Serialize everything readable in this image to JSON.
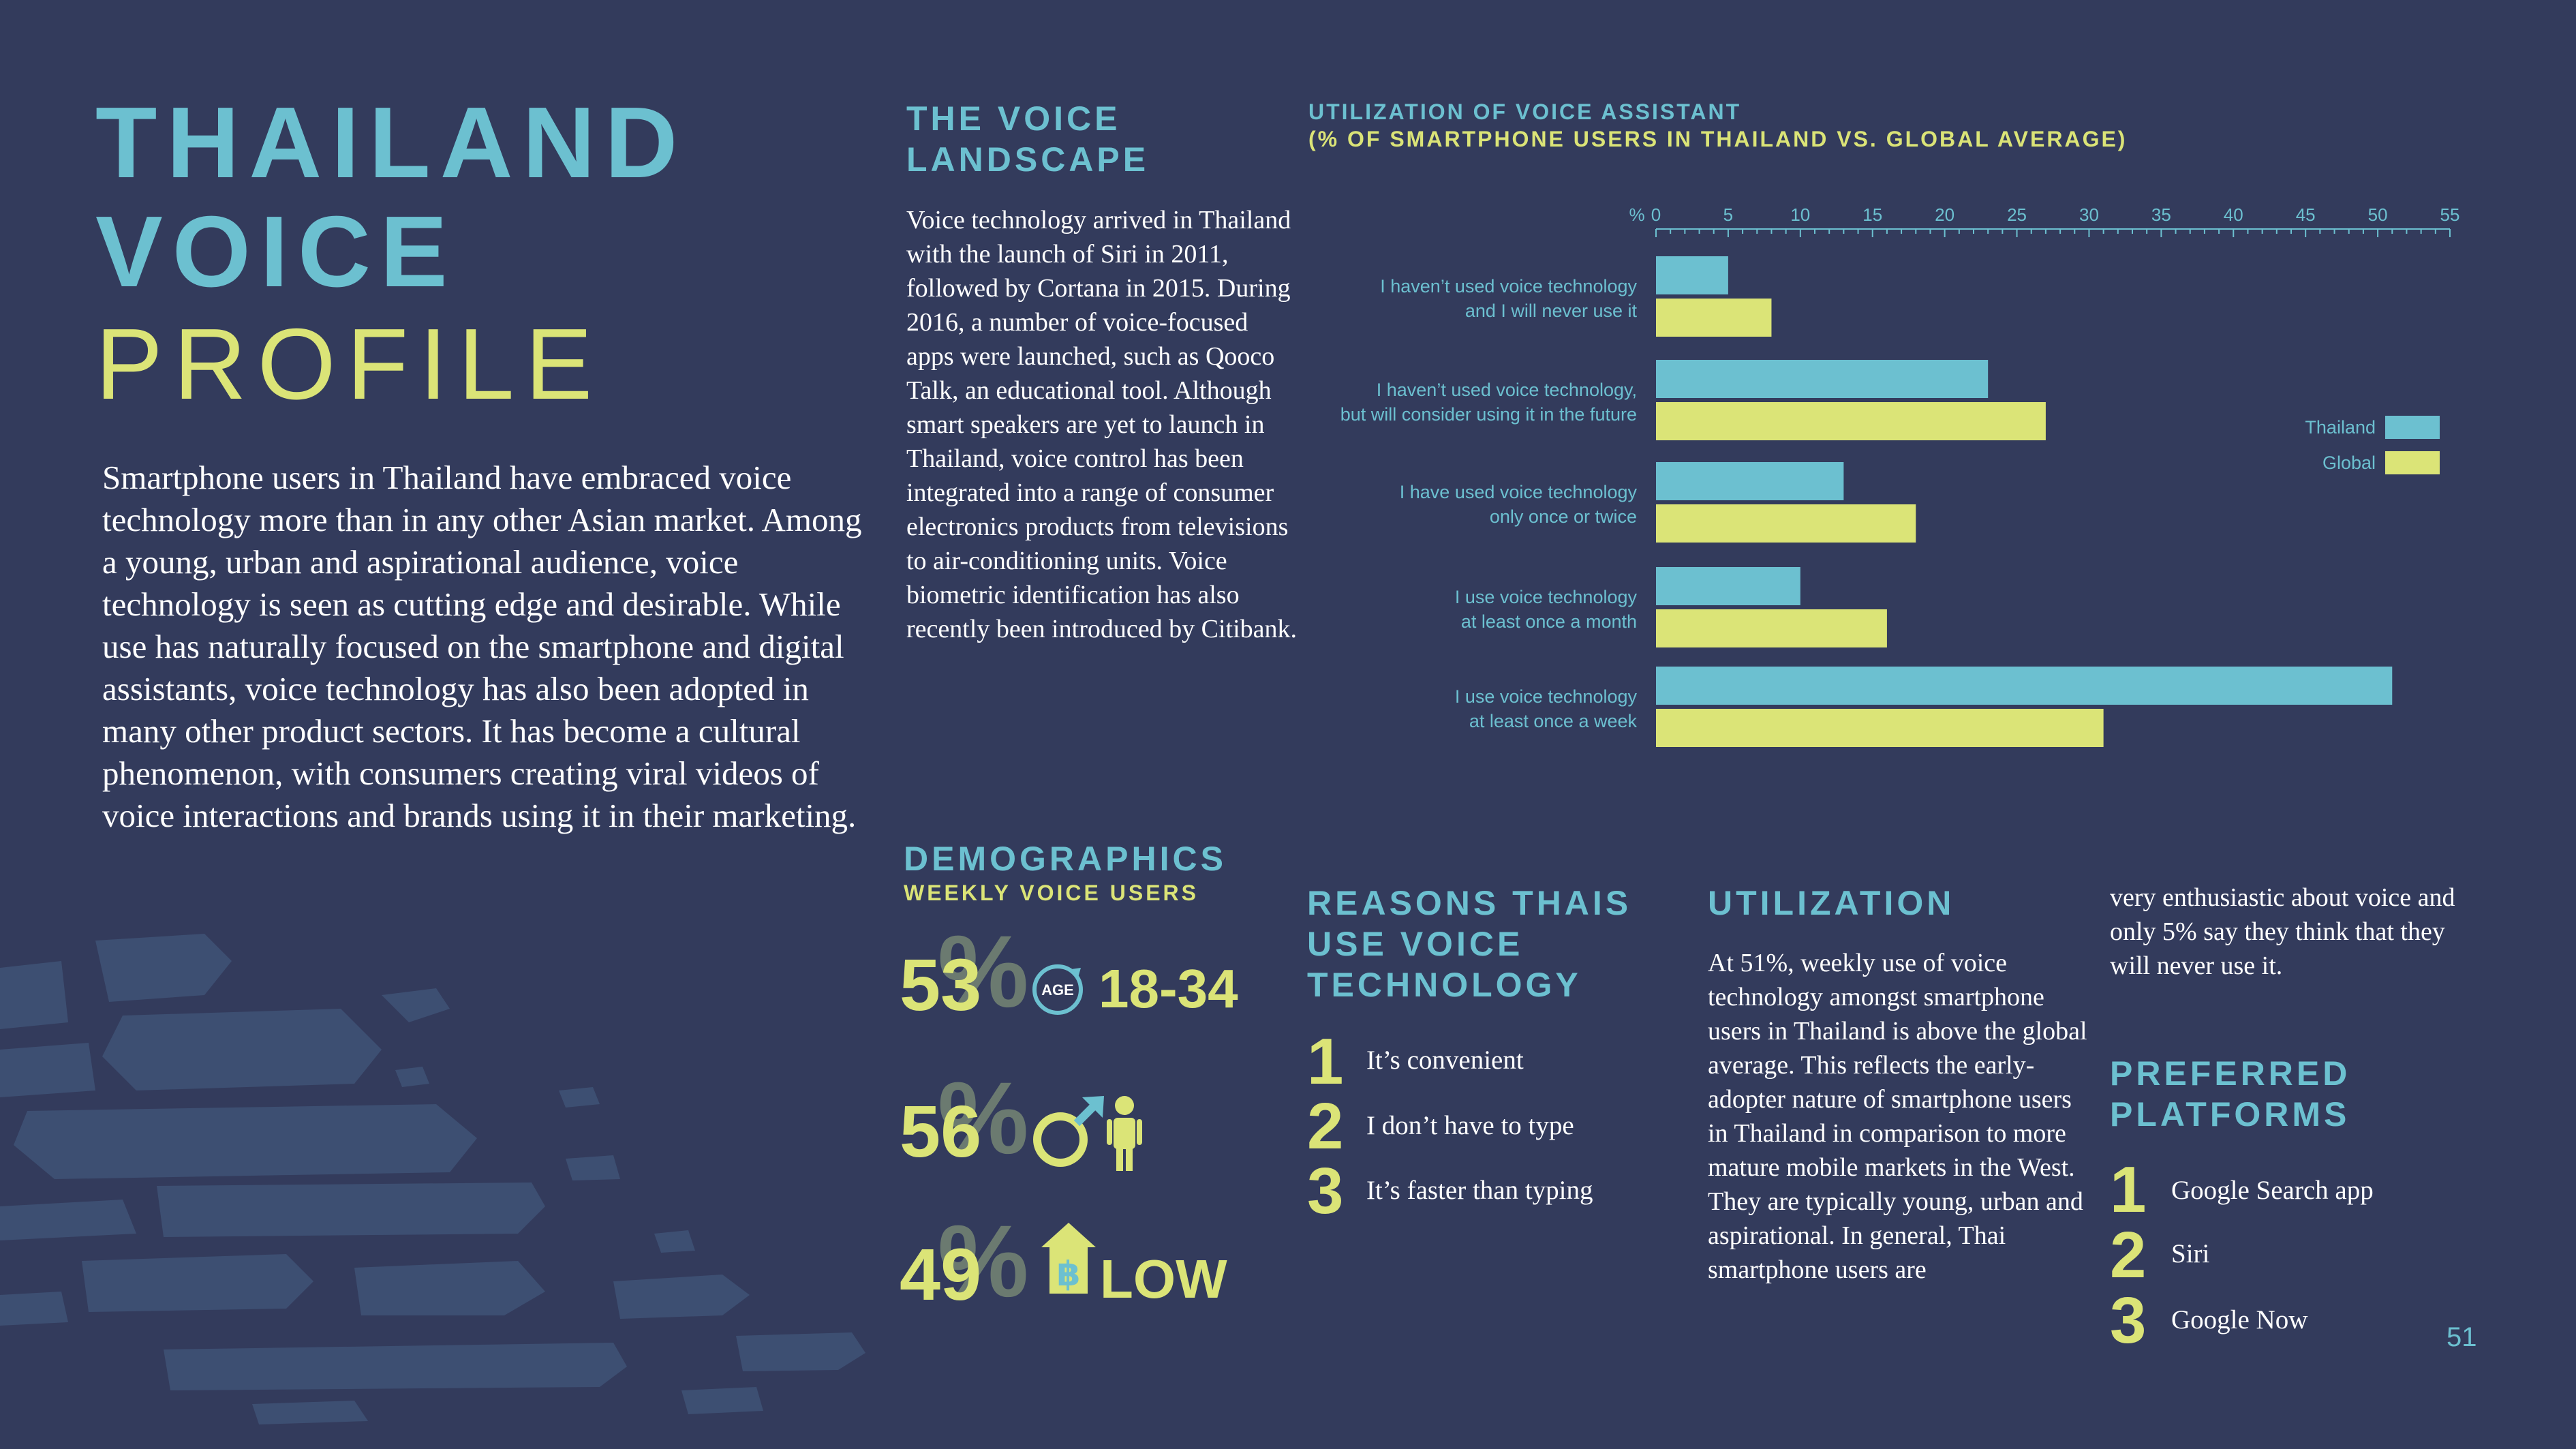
{
  "title": {
    "line1": "THAILAND",
    "line2": "VOICE",
    "line3": "PROFILE"
  },
  "intro": "Smartphone users in Thailand have embraced voice technology more than in any other Asian market. Among a young, urban and aspirational audience, voice technology is seen as cutting edge and desirable. While use has naturally focused on the smartphone and digital assistants, voice technology has also been adopted in many other product sectors. It has become a cultural phenomenon, with consumers creating viral videos of voice interactions and brands using it in their marketing.",
  "landscape": {
    "heading_1": "THE VOICE",
    "heading_2": "LANDSCAPE",
    "body": "Voice technology arrived in Thailand with the launch of Siri in 2011, followed by Cortana in 2015. During 2016, a number of voice-focused apps were launched, such as Qooco Talk, an educational tool. Although smart speakers are yet to launch in Thailand, voice control has been integrated into a range of consumer electronics products from televisions to air-conditioning units. Voice biometric identification has also recently been introduced by Citibank."
  },
  "demographics": {
    "heading": "DEMOGRAPHICS",
    "subheading": "WEEKLY VOICE USERS",
    "percent_sign": "%",
    "rows": [
      {
        "value": "53",
        "icon": "age-icon",
        "icon_text": "AGE",
        "label": "18-34"
      },
      {
        "value": "56",
        "icon": "male-icon",
        "label": ""
      },
      {
        "value": "49",
        "icon": "baht-house-icon",
        "icon_text": "฿",
        "label": "LOW"
      }
    ]
  },
  "reasons": {
    "heading_1": "REASONS THAIS",
    "heading_2": "USE VOICE",
    "heading_3": "TECHNOLOGY",
    "items": [
      {
        "num": "1",
        "text": "It’s convenient"
      },
      {
        "num": "2",
        "text": "I don’t have to type"
      },
      {
        "num": "3",
        "text": "It’s faster than typing"
      }
    ]
  },
  "utilization": {
    "heading": "UTILIZATION",
    "body": "At 51%, weekly use of voice technology amongst smartphone users in Thailand is above the global average. This reflects the early-adopter nature of smartphone users in Thailand in comparison to more mature mobile markets in the West. They are typically young, urban and aspirational. In general, Thai smartphone users are",
    "body_cont": "very enthusiastic about voice and only 5% say they think that they will never use it."
  },
  "platforms": {
    "heading_1": "PREFERRED",
    "heading_2": "PLATFORMS",
    "items": [
      {
        "num": "1",
        "text": "Google Search app"
      },
      {
        "num": "2",
        "text": "Siri"
      },
      {
        "num": "3",
        "text": "Google Now"
      }
    ]
  },
  "page_number": "51",
  "colors": {
    "background": "#333b5c",
    "teal": "#6cc0d0",
    "lime": "#dbe477",
    "thailand_bar": "#6cc0d0",
    "global_bar": "#dbe477"
  },
  "chart_data": {
    "type": "bar",
    "orientation": "horizontal",
    "title": "UTILIZATION OF VOICE ASSISTANT",
    "subtitle": "(% OF SMARTPHONE USERS IN THAILAND VS. GLOBAL AVERAGE)",
    "axis_unit": "%",
    "xlim": [
      0,
      55
    ],
    "ticks": [
      0,
      5,
      10,
      15,
      20,
      25,
      30,
      35,
      40,
      45,
      50,
      55
    ],
    "legend_position": "right",
    "categories": [
      [
        "I haven’t used voice technology",
        "and I will never use it"
      ],
      [
        "I haven’t used voice technology,",
        "but will consider using it in the future"
      ],
      [
        "I have used voice technology",
        "only once or twice"
      ],
      [
        "I use voice technology",
        "at least once a month"
      ],
      [
        "I use voice technology",
        "at least once a week"
      ]
    ],
    "series": [
      {
        "name": "Thailand",
        "color": "#6cc0d0",
        "values": [
          5,
          23,
          13,
          10,
          51
        ]
      },
      {
        "name": "Global",
        "color": "#dbe477",
        "values": [
          8,
          27,
          18,
          16,
          31
        ]
      }
    ]
  }
}
